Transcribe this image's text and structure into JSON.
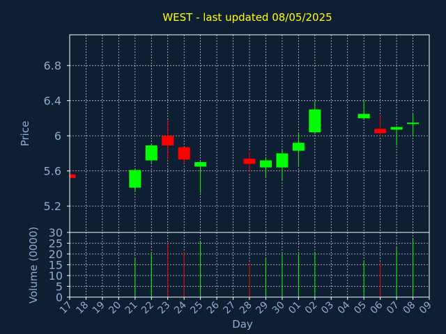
{
  "chart_data": {
    "type": "candlestick",
    "title": "WEST - last updated 08/05/2025",
    "price_panel": {
      "ylabel": "Price",
      "ylim": [
        4.9,
        7.15
      ],
      "yticks": [
        "5.2",
        "5.6",
        "6",
        "6.4",
        "6.8"
      ],
      "grid": true
    },
    "volume_panel": {
      "ylabel": "Volume (0000)",
      "ylim": [
        0,
        30
      ],
      "yticks": [
        "0",
        "5",
        "10",
        "15",
        "20",
        "25",
        "30"
      ],
      "grid": true
    },
    "xlabel": "Day",
    "x_ticks": [
      "17",
      "18",
      "19",
      "20",
      "21",
      "22",
      "23",
      "24",
      "25",
      "26",
      "27",
      "28",
      "29",
      "30",
      "01",
      "02",
      "03",
      "04",
      "05",
      "06",
      "07",
      "08",
      "09"
    ],
    "candles": [
      {
        "day": "17",
        "open": 5.56,
        "high": 5.56,
        "low": 5.52,
        "close": 5.52,
        "volume": 0
      },
      {
        "day": "21",
        "open": 5.41,
        "high": 5.62,
        "low": 5.37,
        "close": 5.61,
        "volume": 18
      },
      {
        "day": "22",
        "open": 5.72,
        "high": 5.91,
        "low": 5.69,
        "close": 5.89,
        "volume": 20
      },
      {
        "day": "23",
        "open": 6.0,
        "high": 6.18,
        "low": 5.73,
        "close": 5.89,
        "volume": 25
      },
      {
        "day": "24",
        "open": 5.87,
        "high": 5.87,
        "low": 5.68,
        "close": 5.73,
        "volume": 21
      },
      {
        "day": "25",
        "open": 5.65,
        "high": 5.71,
        "low": 5.35,
        "close": 5.7,
        "volume": 26
      },
      {
        "day": "28",
        "open": 5.74,
        "high": 5.82,
        "low": 5.58,
        "close": 5.68,
        "volume": 16
      },
      {
        "day": "29",
        "open": 5.64,
        "high": 5.76,
        "low": 5.53,
        "close": 5.72,
        "volume": 18
      },
      {
        "day": "30",
        "open": 5.64,
        "high": 5.84,
        "low": 5.49,
        "close": 5.8,
        "volume": 20
      },
      {
        "day": "01",
        "open": 5.83,
        "high": 6.04,
        "low": 5.66,
        "close": 5.92,
        "volume": 20
      },
      {
        "day": "02",
        "open": 6.04,
        "high": 6.4,
        "low": 6.02,
        "close": 6.3,
        "volume": 21
      },
      {
        "day": "05",
        "open": 6.2,
        "high": 6.4,
        "low": 6.18,
        "close": 6.25,
        "volume": 17
      },
      {
        "day": "06",
        "open": 6.08,
        "high": 6.24,
        "low": 5.99,
        "close": 6.03,
        "volume": 16
      },
      {
        "day": "07",
        "open": 6.07,
        "high": 6.11,
        "low": 5.89,
        "close": 6.1,
        "volume": 23
      },
      {
        "day": "08",
        "open": 6.14,
        "high": 6.25,
        "low": 6.0,
        "close": 6.15,
        "volume": 27
      }
    ],
    "colors": {
      "background": "#0f1f33",
      "up": "#00ff00",
      "down": "#ff0000",
      "grid": "#ffffff",
      "frame": "#ffffff",
      "text": "#8aaed0",
      "title": "#ffff00"
    }
  }
}
